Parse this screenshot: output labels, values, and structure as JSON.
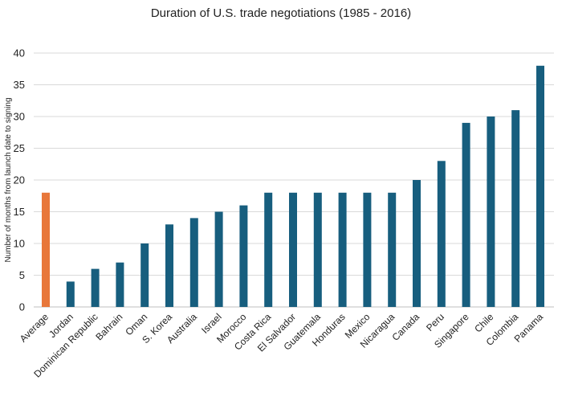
{
  "chart_data": {
    "type": "bar",
    "title": "Duration of U.S. trade negotiations (1985 - 2016)",
    "xlabel": "",
    "ylabel": "Number of months from launch date to signing",
    "ylim": [
      0,
      40
    ],
    "yticks": [
      0,
      5,
      10,
      15,
      20,
      25,
      30,
      35,
      40
    ],
    "grid": true,
    "categories": [
      "Average",
      "Jordan",
      "Dominican Republic",
      "Bahrain",
      "Oman",
      "S. Korea",
      "Australia",
      "Israel",
      "Morocco",
      "Costa Rica",
      "El Salvador",
      "Guatemala",
      "Honduras",
      "Mexico",
      "Nicaragua",
      "Canada",
      "Peru",
      "Singapore",
      "Chile",
      "Colombia",
      "Panama"
    ],
    "values": [
      18,
      4,
      6,
      7,
      10,
      13,
      14,
      15,
      16,
      18,
      18,
      18,
      18,
      18,
      18,
      20,
      23,
      29,
      30,
      31,
      38
    ],
    "colors": {
      "highlight": "#E8773A",
      "bar": "#175E7E",
      "grid": "#D9D9D9",
      "axis": "#BFBFBF"
    },
    "highlight_category": "Average"
  }
}
